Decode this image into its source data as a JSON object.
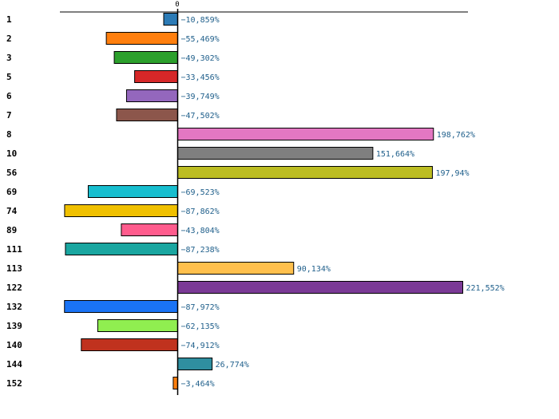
{
  "chart_data": {
    "type": "bar",
    "orientation": "horizontal",
    "title": "",
    "xlabel": "",
    "ylabel": "",
    "zero_tick_label": "0",
    "xlim": [
      -104,
      245
    ],
    "grid": false,
    "legend": "none",
    "categories": [
      "1",
      "2",
      "3",
      "5",
      "6",
      "7",
      "8",
      "10",
      "56",
      "69",
      "74",
      "89",
      "111",
      "113",
      "122",
      "132",
      "139",
      "140",
      "144",
      "152"
    ],
    "values": [
      -10.859,
      -55.469,
      -49.302,
      -33.456,
      -39.749,
      -47.502,
      198.762,
      151.664,
      197.94,
      -69.523,
      -87.862,
      -43.804,
      -87.238,
      90.134,
      221.552,
      -87.972,
      -62.135,
      -74.912,
      26.774,
      -3.464
    ],
    "value_labels": [
      "−10,859%",
      "−55,469%",
      "−49,302%",
      "−33,456%",
      "−39,749%",
      "−47,502%",
      "198,762%",
      "151,664%",
      "197,94%",
      "−69,523%",
      "−87,862%",
      "−43,804%",
      "−87,238%",
      "90,134%",
      "221,552%",
      "−87,972%",
      "−62,135%",
      "−74,912%",
      "26,774%",
      "−3,464%"
    ],
    "colors": [
      "#2c7bb6",
      "#ff7f0e",
      "#2ca02c",
      "#d62728",
      "#9467bd",
      "#8c564b",
      "#e377c2",
      "#7f7f7f",
      "#bcbd22",
      "#17becf",
      "#f0c000",
      "#ff5c8d",
      "#1aa6a0",
      "#ffc04d",
      "#7b3a96",
      "#1a73f5",
      "#90ee50",
      "#c0321e",
      "#2f8fa0",
      "#ff7f0e"
    ]
  }
}
